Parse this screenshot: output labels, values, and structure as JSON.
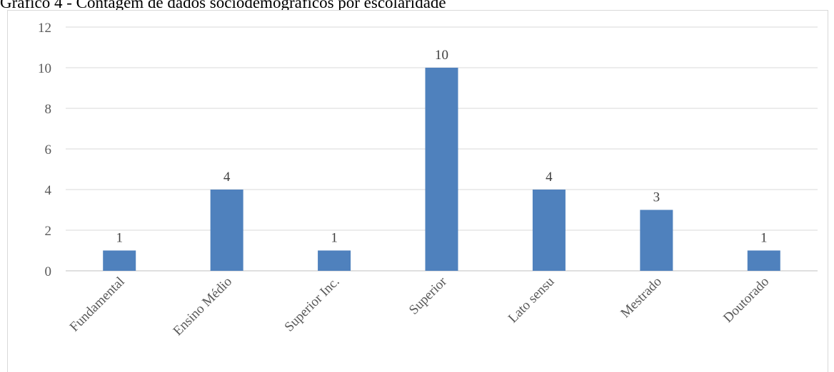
{
  "caption": "Gráfico 4 - Contagem de dados sociodemográficos por escolaridade",
  "chart_data": {
    "type": "bar",
    "title": "Gráfico 4 - Contagem de dados sociodemográficos por escolaridade",
    "categories": [
      "Fundamental",
      "Ensino Médio",
      "Superior Inc.",
      "Superior",
      "Lato sensu",
      "Mestrado",
      "Doutorado"
    ],
    "values": [
      1,
      4,
      1,
      10,
      4,
      3,
      1
    ],
    "ylim": [
      0,
      12
    ],
    "yticks": [
      0,
      2,
      4,
      6,
      8,
      10,
      12
    ],
    "grid": true,
    "legend": false,
    "bar_color": "#4f81bd",
    "grid_color": "#d9d9d9",
    "data_labels": true
  }
}
